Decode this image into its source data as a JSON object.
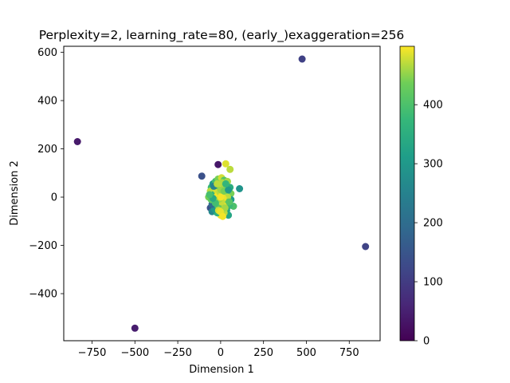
{
  "chart_data": {
    "type": "scatter",
    "title": "Perplexity=2, learning_rate=80, (early_)exaggeration=256",
    "xlabel": "Dimension 1",
    "ylabel": "Dimension 2",
    "xlim": [
      -915,
      930
    ],
    "ylim": [
      -595,
      625
    ],
    "xticks": [
      -750,
      -500,
      -250,
      0,
      250,
      500,
      750
    ],
    "xtick_labels": [
      "−750",
      "−500",
      "−250",
      "0",
      "250",
      "500",
      "750"
    ],
    "yticks": [
      -400,
      -200,
      0,
      200,
      400,
      600
    ],
    "ytick_labels": [
      "−400",
      "−200",
      "0",
      "200",
      "400",
      "600"
    ],
    "grid": false,
    "colormap": "viridis",
    "colorbar": {
      "range": [
        0,
        499
      ],
      "ticks": [
        0,
        100,
        200,
        300,
        400
      ],
      "tick_labels": [
        "0",
        "100",
        "200",
        "300",
        "400"
      ]
    },
    "points": [
      {
        "x": 475,
        "y": 572,
        "c": 110
      },
      {
        "x": -835,
        "y": 230,
        "c": 40
      },
      {
        "x": 845,
        "y": -205,
        "c": 115
      },
      {
        "x": -500,
        "y": -543,
        "c": 45
      },
      {
        "x": -110,
        "y": 87,
        "c": 140
      },
      {
        "x": -15,
        "y": 135,
        "c": 35
      },
      {
        "x": 30,
        "y": 138,
        "c": 485
      },
      {
        "x": 55,
        "y": 115,
        "c": 470
      },
      {
        "x": 110,
        "y": 35,
        "c": 290
      },
      {
        "x": 45,
        "y": -75,
        "c": 330
      },
      {
        "x": 75,
        "y": -38,
        "c": 400
      },
      {
        "x": -35,
        "y": 20,
        "c": 420
      },
      {
        "x": -55,
        "y": 40,
        "c": 380
      },
      {
        "x": -60,
        "y": -45,
        "c": 140
      },
      {
        "x": -50,
        "y": -60,
        "c": 260
      },
      {
        "x": -70,
        "y": 0,
        "c": 440
      },
      {
        "x": -60,
        "y": 25,
        "c": 470
      },
      {
        "x": -45,
        "y": 55,
        "c": 300
      },
      {
        "x": -30,
        "y": 65,
        "c": 390
      },
      {
        "x": -15,
        "y": 75,
        "c": 440
      },
      {
        "x": 5,
        "y": 80,
        "c": 480
      },
      {
        "x": 20,
        "y": 70,
        "c": 410
      },
      {
        "x": 40,
        "y": 65,
        "c": 460
      },
      {
        "x": 55,
        "y": 40,
        "c": 350
      },
      {
        "x": 60,
        "y": 15,
        "c": 440
      },
      {
        "x": 60,
        "y": -10,
        "c": 310
      },
      {
        "x": 50,
        "y": -35,
        "c": 380
      },
      {
        "x": 35,
        "y": -55,
        "c": 330
      },
      {
        "x": 20,
        "y": -65,
        "c": 470
      },
      {
        "x": 0,
        "y": -75,
        "c": 495
      },
      {
        "x": -20,
        "y": -65,
        "c": 360
      },
      {
        "x": -35,
        "y": -50,
        "c": 300
      },
      {
        "x": -50,
        "y": -30,
        "c": 200
      },
      {
        "x": -55,
        "y": -10,
        "c": 420
      },
      {
        "x": -40,
        "y": 10,
        "c": 360
      },
      {
        "x": -25,
        "y": 30,
        "c": 480
      },
      {
        "x": -10,
        "y": 45,
        "c": 430
      },
      {
        "x": 10,
        "y": 50,
        "c": 490
      },
      {
        "x": 25,
        "y": 40,
        "c": 460
      },
      {
        "x": 35,
        "y": 20,
        "c": 400
      },
      {
        "x": 40,
        "y": 0,
        "c": 470
      },
      {
        "x": 30,
        "y": -20,
        "c": 440
      },
      {
        "x": 15,
        "y": -35,
        "c": 490
      },
      {
        "x": 0,
        "y": -45,
        "c": 480
      },
      {
        "x": -15,
        "y": -35,
        "c": 420
      },
      {
        "x": -25,
        "y": -15,
        "c": 460
      },
      {
        "x": -20,
        "y": 5,
        "c": 495
      },
      {
        "x": -5,
        "y": 20,
        "c": 470
      },
      {
        "x": 10,
        "y": 15,
        "c": 485
      },
      {
        "x": 15,
        "y": -5,
        "c": 490
      },
      {
        "x": 5,
        "y": -20,
        "c": 475
      },
      {
        "x": -8,
        "y": -8,
        "c": 460
      },
      {
        "x": 0,
        "y": 0,
        "c": 495
      },
      {
        "x": 2,
        "y": 30,
        "c": 455
      },
      {
        "x": -30,
        "y": -25,
        "c": 390
      },
      {
        "x": 20,
        "y": 25,
        "c": 440
      },
      {
        "x": -12,
        "y": -55,
        "c": 480
      },
      {
        "x": 25,
        "y": -45,
        "c": 460
      },
      {
        "x": 45,
        "y": 30,
        "c": 300
      },
      {
        "x": -40,
        "y": 45,
        "c": 250
      },
      {
        "x": 8,
        "y": 60,
        "c": 465
      },
      {
        "x": -2,
        "y": -60,
        "c": 490
      },
      {
        "x": 30,
        "y": 55,
        "c": 370
      },
      {
        "x": -45,
        "y": -5,
        "c": 340
      },
      {
        "x": 50,
        "y": -20,
        "c": 410
      },
      {
        "x": -20,
        "y": 55,
        "c": 470
      },
      {
        "x": 12,
        "y": -80,
        "c": 495
      },
      {
        "x": -65,
        "y": 10,
        "c": 395
      }
    ]
  }
}
